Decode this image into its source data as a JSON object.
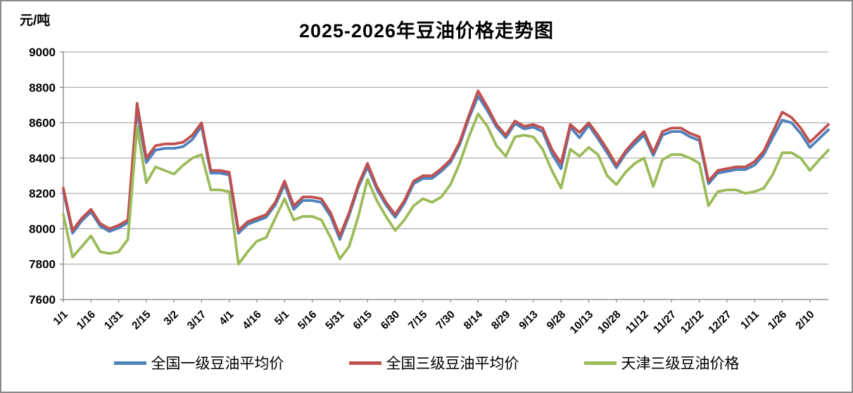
{
  "unit_label": "元/吨",
  "title": "2025-2026年豆油价格走势图",
  "legend": {
    "items": [
      {
        "label": "全国一级豆油平均价",
        "color": "#4F81BD"
      },
      {
        "label": "全国三级豆油平均价",
        "color": "#C0504D"
      },
      {
        "label": "天津三级豆油价格",
        "color": "#9BBB59"
      }
    ]
  },
  "chart_data": {
    "type": "line",
    "title": "2025-2026年豆油价格走势图",
    "xlabel": "",
    "ylabel": "元/吨",
    "ylim": [
      7600,
      9000
    ],
    "ytick_step": 200,
    "yticks": [
      7600,
      7800,
      8000,
      8200,
      8400,
      8600,
      8800,
      9000
    ],
    "grid": true,
    "legend_position": "bottom",
    "x_label_interval": 3,
    "x_labels_shown": [
      "1/1",
      "1/16",
      "1/31",
      "2/15",
      "3/2",
      "3/17",
      "4/1",
      "4/16",
      "5/1",
      "5/16",
      "5/31",
      "6/15",
      "6/30",
      "7/15",
      "7/30",
      "8/14",
      "8/29",
      "9/13",
      "9/28",
      "10/13",
      "10/28",
      "11/12",
      "11/27",
      "12/12",
      "12/27",
      "1/11",
      "1/26",
      "2/10"
    ],
    "categories": [
      "1/1",
      "1/6",
      "1/11",
      "1/16",
      "1/21",
      "1/26",
      "1/31",
      "2/5",
      "2/10",
      "2/15",
      "2/20",
      "2/25",
      "3/2",
      "3/7",
      "3/12",
      "3/17",
      "3/22",
      "3/27",
      "4/1",
      "4/6",
      "4/11",
      "4/16",
      "4/21",
      "4/26",
      "5/1",
      "5/6",
      "5/11",
      "5/16",
      "5/21",
      "5/26",
      "5/31",
      "6/5",
      "6/10",
      "6/15",
      "6/20",
      "6/25",
      "6/30",
      "7/5",
      "7/10",
      "7/15",
      "7/20",
      "7/25",
      "7/30",
      "8/4",
      "8/9",
      "8/14",
      "8/19",
      "8/24",
      "8/29",
      "9/3",
      "9/8",
      "9/13",
      "9/18",
      "9/23",
      "9/28",
      "10/3",
      "10/8",
      "10/13",
      "10/18",
      "10/23",
      "10/28",
      "11/2",
      "11/7",
      "11/12",
      "11/17",
      "11/22",
      "11/27",
      "12/2",
      "12/7",
      "12/12",
      "12/17",
      "12/22",
      "12/27",
      "1/1",
      "1/6",
      "1/11",
      "1/16",
      "1/21",
      "1/26",
      "1/31",
      "2/5",
      "2/10",
      "2/15",
      "2/20"
    ],
    "series": [
      {
        "name": "全国一级豆油平均价",
        "color": "#4F81BD",
        "values": [
          8215,
          7975,
          8045,
          8095,
          8015,
          7985,
          8005,
          8035,
          8670,
          8375,
          8445,
          8455,
          8455,
          8465,
          8505,
          8580,
          8315,
          8315,
          8305,
          7975,
          8025,
          8045,
          8065,
          8135,
          8250,
          8110,
          8160,
          8160,
          8150,
          8070,
          7940,
          8075,
          8235,
          8350,
          8225,
          8135,
          8065,
          8145,
          8255,
          8285,
          8285,
          8325,
          8375,
          8475,
          8625,
          8750,
          8670,
          8575,
          8515,
          8595,
          8565,
          8575,
          8550,
          8425,
          8340,
          8575,
          8515,
          8585,
          8510,
          8430,
          8345,
          8425,
          8480,
          8530,
          8415,
          8530,
          8550,
          8550,
          8520,
          8500,
          8255,
          8315,
          8325,
          8335,
          8335,
          8360,
          8420,
          8520,
          8615,
          8600,
          8540,
          8460,
          8510,
          8560
        ]
      },
      {
        "name": "全国三级豆油平均价",
        "color": "#C0504D",
        "values": [
          8230,
          7990,
          8060,
          8110,
          8030,
          8000,
          8020,
          8050,
          8710,
          8400,
          8470,
          8480,
          8480,
          8490,
          8530,
          8600,
          8330,
          8330,
          8320,
          7990,
          8040,
          8060,
          8080,
          8150,
          8270,
          8130,
          8180,
          8180,
          8170,
          8090,
          7960,
          8090,
          8250,
          8370,
          8240,
          8150,
          8080,
          8160,
          8270,
          8300,
          8300,
          8340,
          8390,
          8490,
          8640,
          8780,
          8690,
          8590,
          8530,
          8610,
          8580,
          8590,
          8570,
          8450,
          8370,
          8590,
          8545,
          8600,
          8530,
          8450,
          8360,
          8440,
          8500,
          8550,
          8430,
          8550,
          8570,
          8570,
          8540,
          8520,
          8270,
          8330,
          8340,
          8350,
          8350,
          8380,
          8440,
          8550,
          8660,
          8630,
          8570,
          8490,
          8540,
          8590
        ]
      },
      {
        "name": "天津三级豆油价格",
        "color": "#9BBB59",
        "values": [
          8080,
          7840,
          7900,
          7960,
          7870,
          7860,
          7870,
          7940,
          8580,
          8260,
          8350,
          8330,
          8310,
          8360,
          8400,
          8420,
          8220,
          8220,
          8210,
          7800,
          7870,
          7930,
          7950,
          8060,
          8170,
          8050,
          8070,
          8070,
          8050,
          7950,
          7830,
          7900,
          8070,
          8280,
          8160,
          8070,
          7990,
          8050,
          8130,
          8170,
          8150,
          8180,
          8250,
          8370,
          8520,
          8650,
          8580,
          8470,
          8410,
          8520,
          8530,
          8520,
          8450,
          8330,
          8230,
          8450,
          8410,
          8460,
          8420,
          8300,
          8250,
          8320,
          8370,
          8400,
          8240,
          8390,
          8420,
          8420,
          8400,
          8370,
          8130,
          8210,
          8220,
          8220,
          8200,
          8210,
          8230,
          8310,
          8430,
          8430,
          8400,
          8330,
          8390,
          8445
        ]
      }
    ],
    "colors": {
      "grid": "#9a9a9a",
      "axis": "#808080",
      "border": "#8a8a8a"
    }
  }
}
